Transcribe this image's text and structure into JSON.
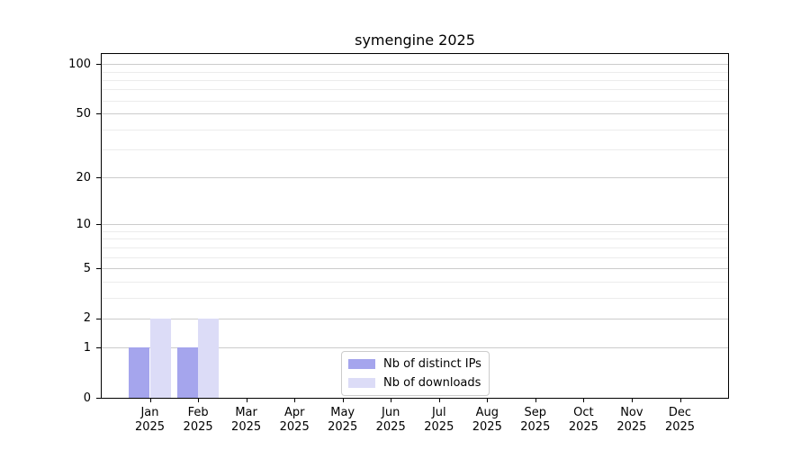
{
  "title": "symengine 2025",
  "chart_data": {
    "type": "bar",
    "title": "symengine 2025",
    "categories": [
      "Jan 2025",
      "Feb 2025",
      "Mar 2025",
      "Apr 2025",
      "May 2025",
      "Jun 2025",
      "Jul 2025",
      "Aug 2025",
      "Sep 2025",
      "Oct 2025",
      "Nov 2025",
      "Dec 2025"
    ],
    "series": [
      {
        "name": "Nb of distinct IPs",
        "color": "#a5a5ed",
        "values": [
          1,
          1,
          0,
          0,
          0,
          0,
          0,
          0,
          0,
          0,
          0,
          0
        ]
      },
      {
        "name": "Nb of downloads",
        "color": "#dcdcf7",
        "values": [
          2,
          2,
          0,
          0,
          0,
          0,
          0,
          0,
          0,
          0,
          0,
          0
        ]
      }
    ],
    "xlabel": "",
    "ylabel": "",
    "yscale": "log1p",
    "ylim": [
      0,
      115
    ],
    "y_ticks": [
      0,
      1,
      2,
      5,
      10,
      20,
      50,
      100
    ],
    "y_minor_gridlines": [
      3,
      4,
      6,
      7,
      8,
      9,
      30,
      40,
      60,
      70,
      80,
      90
    ],
    "grid": "horizontal-major-and-minor",
    "legend_position": "lower-center-inside",
    "colors": {
      "axis": "#000000",
      "major_grid": "#cccccc",
      "minor_grid": "#ececec",
      "background": "#ffffff",
      "text": "#000000"
    }
  }
}
